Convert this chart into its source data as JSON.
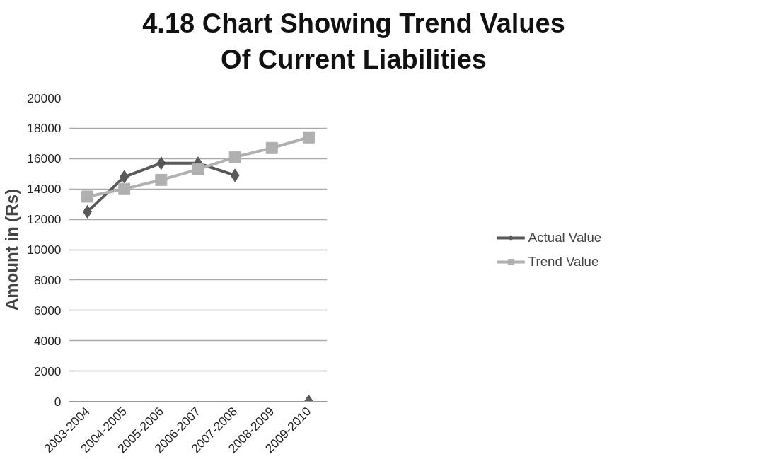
{
  "chart_data": {
    "type": "line",
    "title": "4.18 Chart Showing Trend Values Of Current Liabilities",
    "ylabel": "Amount in (Rs)",
    "categories": [
      "2003-2004",
      "2004-2005",
      "2005-2006",
      "2006-2007",
      "2007-2008",
      "2008-2009",
      "2009-2010"
    ],
    "series": [
      {
        "name": "Actual Value",
        "color": "#595959",
        "marker": "diamond",
        "values": [
          12500,
          14800,
          15700,
          15700,
          14900,
          null,
          0
        ]
      },
      {
        "name": "Trend Value",
        "color": "#b0b0b0",
        "marker": "square",
        "values": [
          13500,
          14000,
          14600,
          15300,
          16100,
          16700,
          17400
        ]
      }
    ],
    "ylim": [
      0,
      20000
    ],
    "yticks": [
      0,
      2000,
      4000,
      6000,
      8000,
      10000,
      12000,
      14000,
      16000,
      18000,
      20000
    ],
    "grid": "y",
    "legend": "right"
  }
}
